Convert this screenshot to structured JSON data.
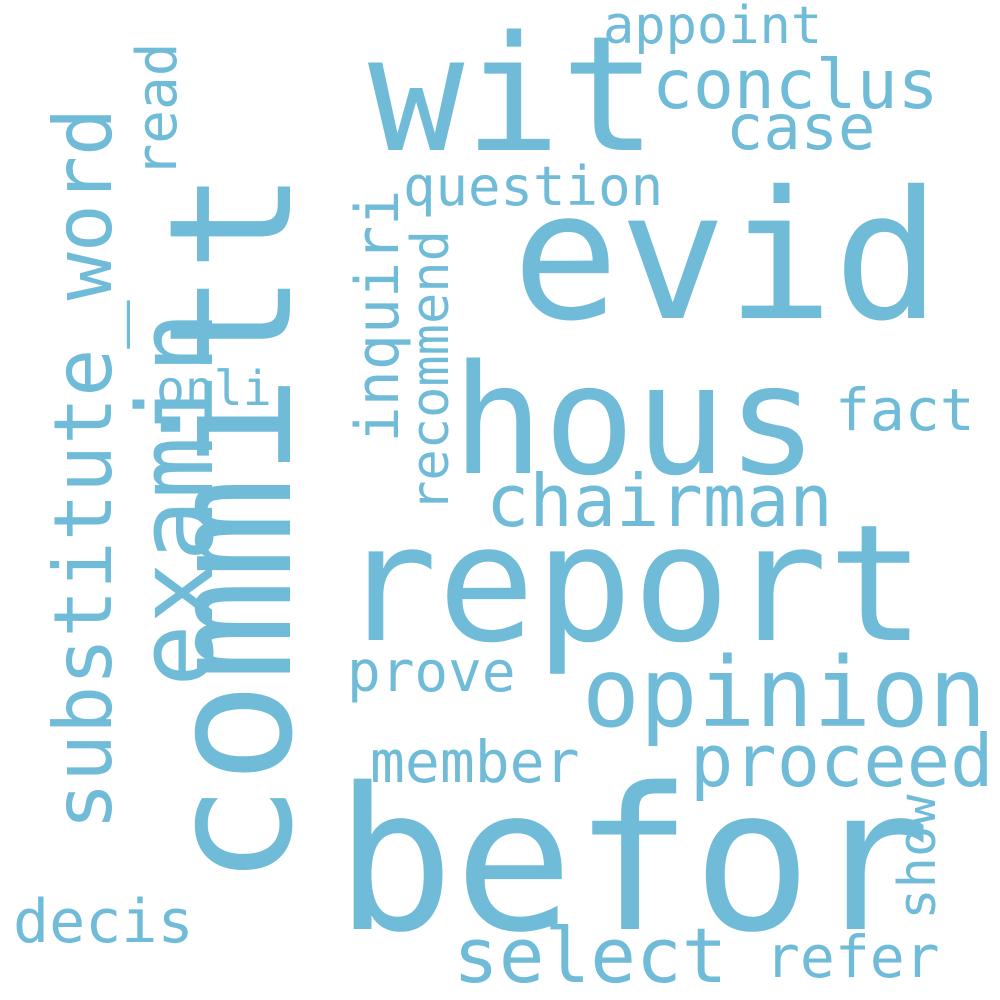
{
  "word_cloud": {
    "color": "#6fbbd8",
    "background": "#ffffff",
    "words": {
      "committ": "committ",
      "befor": "befor",
      "report": "report",
      "evid": "evid",
      "hous": "hous",
      "wit": "wit",
      "substitute": "substitute_word",
      "examin": "examin",
      "opinion": "opinion",
      "conclus": "conclus",
      "case": "case",
      "chairman": "chairman",
      "question": "question",
      "proceed": "proceed",
      "select": "select",
      "refer": "refer",
      "decis": "decis",
      "member": "member",
      "prove": "prove",
      "fact": "fact",
      "appoint": "appoint",
      "onli": "onli",
      "read": "read",
      "inquiri": "inquiri",
      "recommend": "recommend",
      "show": "show"
    }
  }
}
